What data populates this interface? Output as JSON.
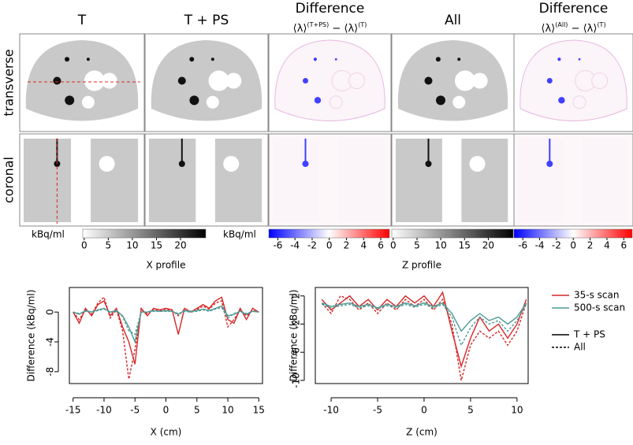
{
  "panels": [
    {
      "title": "T"
    },
    {
      "title": "T + PS"
    },
    {
      "title": "Difference",
      "formula": [
        "⟨λ⟩",
        "(T+PS)",
        " − ⟨λ⟩",
        "(T)"
      ]
    },
    {
      "title": "All"
    },
    {
      "title": "Difference",
      "formula": [
        "⟨λ⟩",
        "(All)",
        " − ⟨λ⟩",
        "(T)"
      ]
    }
  ],
  "rows": [
    "transverse",
    "coronal"
  ],
  "colorbars": [
    {
      "label": "kBq/ml",
      "cmap": "gray",
      "lim": [
        -0.3,
        25.4
      ],
      "ticks": [
        0,
        5,
        10,
        15,
        20
      ]
    },
    {
      "label": "kBq/ml",
      "cmap": "diff",
      "lim": [
        -7.05,
        7.1
      ],
      "ticks": [
        -6,
        -4,
        -2,
        0,
        2,
        4,
        6
      ]
    },
    {
      "cmap": "gray",
      "lim": [
        -0.3,
        25.4
      ],
      "ticks": [
        0,
        5,
        10,
        15,
        20
      ]
    },
    {
      "cmap": "diff",
      "lim": [
        -7.05,
        7.1
      ],
      "ticks": [
        -6,
        -4,
        -2,
        0,
        2,
        4,
        6
      ]
    }
  ],
  "chart_data": [
    {
      "type": "line",
      "title": "X profile",
      "x_label": "X (cm)",
      "y_label": "Difference (kBq/ml)",
      "xlim": [
        -15.6,
        15.6
      ],
      "xticks": [
        -15,
        -10,
        -5,
        0,
        5,
        10,
        15
      ],
      "ylim": [
        -9.6,
        3.3
      ],
      "yticks": [
        0,
        -4,
        -8
      ],
      "x": [
        -15,
        -14,
        -13,
        -12,
        -11,
        -10,
        -9,
        -8,
        -7,
        -6,
        -5,
        -4,
        -3,
        -2,
        -1,
        0,
        1,
        2,
        3,
        4,
        5,
        6,
        7,
        8,
        9,
        10,
        11,
        12,
        13,
        14,
        15
      ],
      "series": [
        {
          "color": "#d62728",
          "dashed": false,
          "values": [
            0,
            -1.5,
            0.5,
            -0.5,
            1,
            1.5,
            -0.5,
            0.5,
            -2,
            -4,
            -7,
            0.5,
            -0.5,
            0.5,
            0.3,
            0.5,
            0.3,
            -3,
            0.5,
            0,
            0.5,
            1,
            0.5,
            1.5,
            2,
            -1,
            -1.5,
            0.5,
            -1,
            0.5,
            0
          ]
        },
        {
          "color": "#d62728",
          "dashed": true,
          "values": [
            0,
            -1,
            0.3,
            -0.3,
            1.2,
            2,
            -0.8,
            0.3,
            -2.5,
            -9,
            -5,
            0.3,
            -0.2,
            0.4,
            0.2,
            0.4,
            0.2,
            -0.5,
            0.4,
            0.1,
            0.3,
            0.8,
            0.4,
            1.2,
            1.5,
            -2,
            -1,
            0.3,
            -0.5,
            0.2,
            0
          ]
        },
        {
          "color": "#4d9a96",
          "dashed": false,
          "values": [
            0,
            -0.3,
            0.2,
            0,
            0.3,
            0.5,
            0,
            0.2,
            -0.5,
            -2,
            -4,
            0,
            0,
            0.2,
            0.1,
            0.2,
            0.1,
            -0.3,
            0.2,
            0.1,
            0.2,
            0.4,
            0.2,
            0.5,
            0.8,
            -0.5,
            -0.3,
            0.1,
            -0.3,
            0.1,
            0
          ]
        },
        {
          "color": "#4d9a96",
          "dashed": true,
          "values": [
            0,
            -0.2,
            0.1,
            0,
            0.2,
            0.4,
            0,
            0.1,
            -0.6,
            -2.5,
            -3,
            0,
            0,
            0.1,
            0.1,
            0.1,
            0.1,
            -0.2,
            0.1,
            0,
            0.1,
            0.3,
            0.1,
            0.4,
            0.6,
            -0.8,
            -0.2,
            0.1,
            -0.2,
            0.1,
            0
          ]
        }
      ]
    },
    {
      "type": "line",
      "title": "Z profile",
      "x_label": "Z (cm)",
      "y_label": "Difference (kBq/ml)",
      "xlim": [
        -11.7,
        11.2
      ],
      "xticks": [
        -10,
        -5,
        0,
        5,
        10
      ],
      "ylim": [
        -10.45,
        3.2
      ],
      "yticks": [
        2,
        -2,
        -6,
        -10
      ],
      "x": [
        -11,
        -10,
        -9,
        -8,
        -7,
        -6,
        -5,
        -4,
        -3,
        -2,
        -1,
        0,
        1,
        2,
        3,
        4,
        5,
        6,
        7,
        8,
        9,
        10,
        11
      ],
      "series": [
        {
          "color": "#d62728",
          "dashed": false,
          "values": [
            1.5,
            0,
            1,
            2,
            0.5,
            1.5,
            0,
            1.5,
            0.5,
            2,
            1,
            2,
            0.5,
            2.5,
            -3,
            -8,
            -4,
            -1,
            -3,
            -2,
            -4,
            -2,
            1.5
          ]
        },
        {
          "color": "#d62728",
          "dashed": true,
          "values": [
            1,
            -0.5,
            2,
            1.5,
            0,
            1,
            -0.5,
            1,
            0,
            1.5,
            0.5,
            1.5,
            0,
            1.5,
            -2,
            -10,
            -5,
            -3,
            -4,
            -3,
            -5,
            -3,
            1
          ]
        },
        {
          "color": "#4d9a96",
          "dashed": false,
          "values": [
            1,
            0.5,
            0.8,
            1,
            0.5,
            0.8,
            0.3,
            0.8,
            0.5,
            1,
            0.6,
            1,
            0.5,
            1,
            -0.5,
            -3,
            -1.5,
            -0.5,
            -1.5,
            -1,
            -2,
            -1,
            1
          ]
        },
        {
          "color": "#4d9a96",
          "dashed": true,
          "values": [
            0.8,
            0.3,
            0.6,
            0.8,
            0.3,
            0.6,
            0.2,
            0.6,
            0.3,
            0.8,
            0.4,
            0.8,
            0.3,
            0.8,
            -1,
            -5,
            -2.5,
            -1,
            -2,
            -1.5,
            -3,
            -1.5,
            0.8
          ]
        }
      ]
    }
  ],
  "legend": {
    "scans": [
      {
        "name": "35-s scan",
        "color": "#d62728"
      },
      {
        "name": "500-s scan",
        "color": "#4d9a96"
      }
    ],
    "styles": [
      {
        "name": "T + PS",
        "dashed": false
      },
      {
        "name": "All",
        "dashed": true
      }
    ]
  }
}
